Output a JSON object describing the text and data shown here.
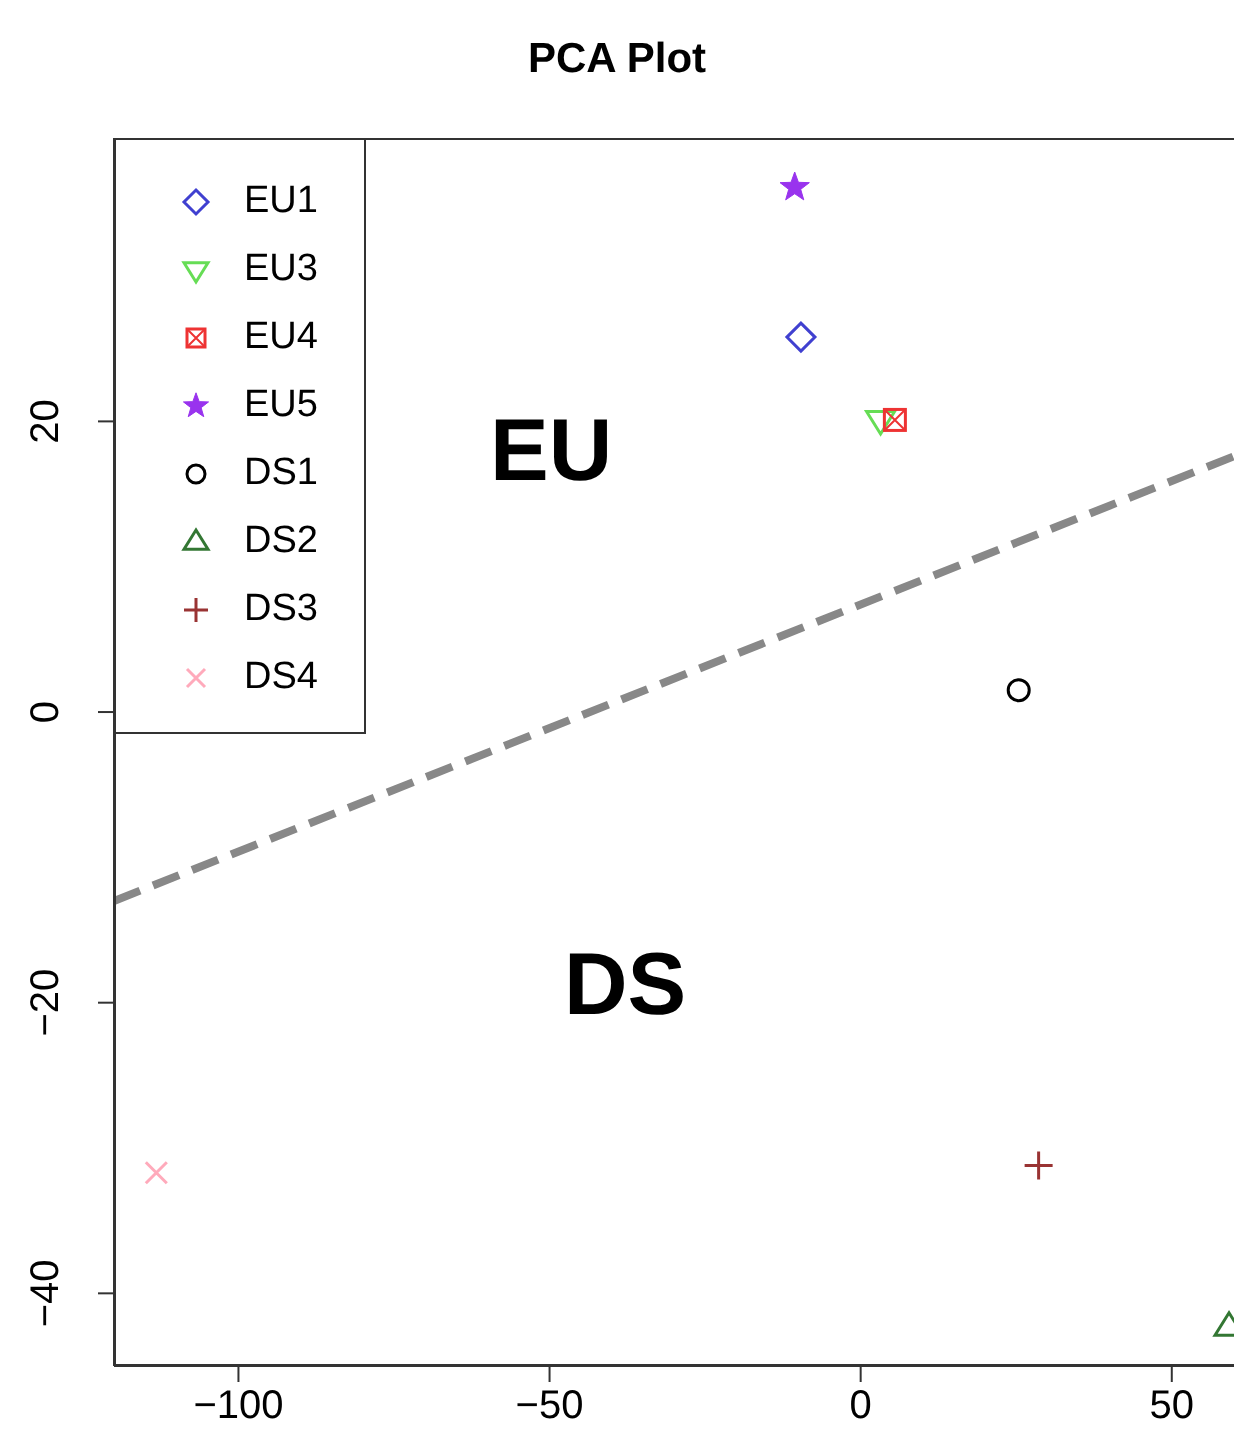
{
  "chart_data": {
    "type": "scatter",
    "title": "PCA Plot",
    "xlim": [
      -120,
      60
    ],
    "xticks": [
      -100,
      -50,
      0,
      50
    ],
    "ylim": [
      -45,
      39.5
    ],
    "yticks": [
      -40,
      -20,
      0,
      20
    ],
    "grid": false,
    "legend": "top left",
    "series": [
      {
        "name": "EU1",
        "color": "#4040d0",
        "marker": "diamond",
        "x": [
          -9.6
        ],
        "values": [
          25.8
        ]
      },
      {
        "name": "EU3",
        "color": "#66dd55",
        "marker": "triangle-down",
        "x": [
          3.2
        ],
        "values": [
          20.1
        ]
      },
      {
        "name": "EU4",
        "color": "#ee3333",
        "marker": "square",
        "x": [
          5.5
        ],
        "values": [
          20.1
        ]
      },
      {
        "name": "EU5",
        "color": "#9933ee",
        "marker": "star",
        "x": [
          -10.6
        ],
        "values": [
          36.1
        ]
      },
      {
        "name": "DS1",
        "color": "#000000",
        "marker": "circle",
        "x": [
          25.4
        ],
        "values": [
          1.5
        ]
      },
      {
        "name": "DS2",
        "color": "#337733",
        "marker": "triangle",
        "x": [
          59.2
        ],
        "values": [
          -42.3
        ]
      },
      {
        "name": "DS3",
        "color": "#993333",
        "marker": "plus",
        "x": [
          28.6
        ],
        "values": [
          -31.2
        ]
      },
      {
        "name": "DS4",
        "color": "#ffaabb",
        "marker": "cross",
        "x": [
          -113.2
        ],
        "values": [
          -31.7
        ]
      },
      {
        "type": "line",
        "color": "#888888",
        "line_style": "dashed",
        "marker": "none",
        "x": [
          -120,
          60
        ],
        "values": [
          -13.0,
          17.6
        ]
      }
    ],
    "annotations": [
      "EU",
      "DS"
    ]
  }
}
